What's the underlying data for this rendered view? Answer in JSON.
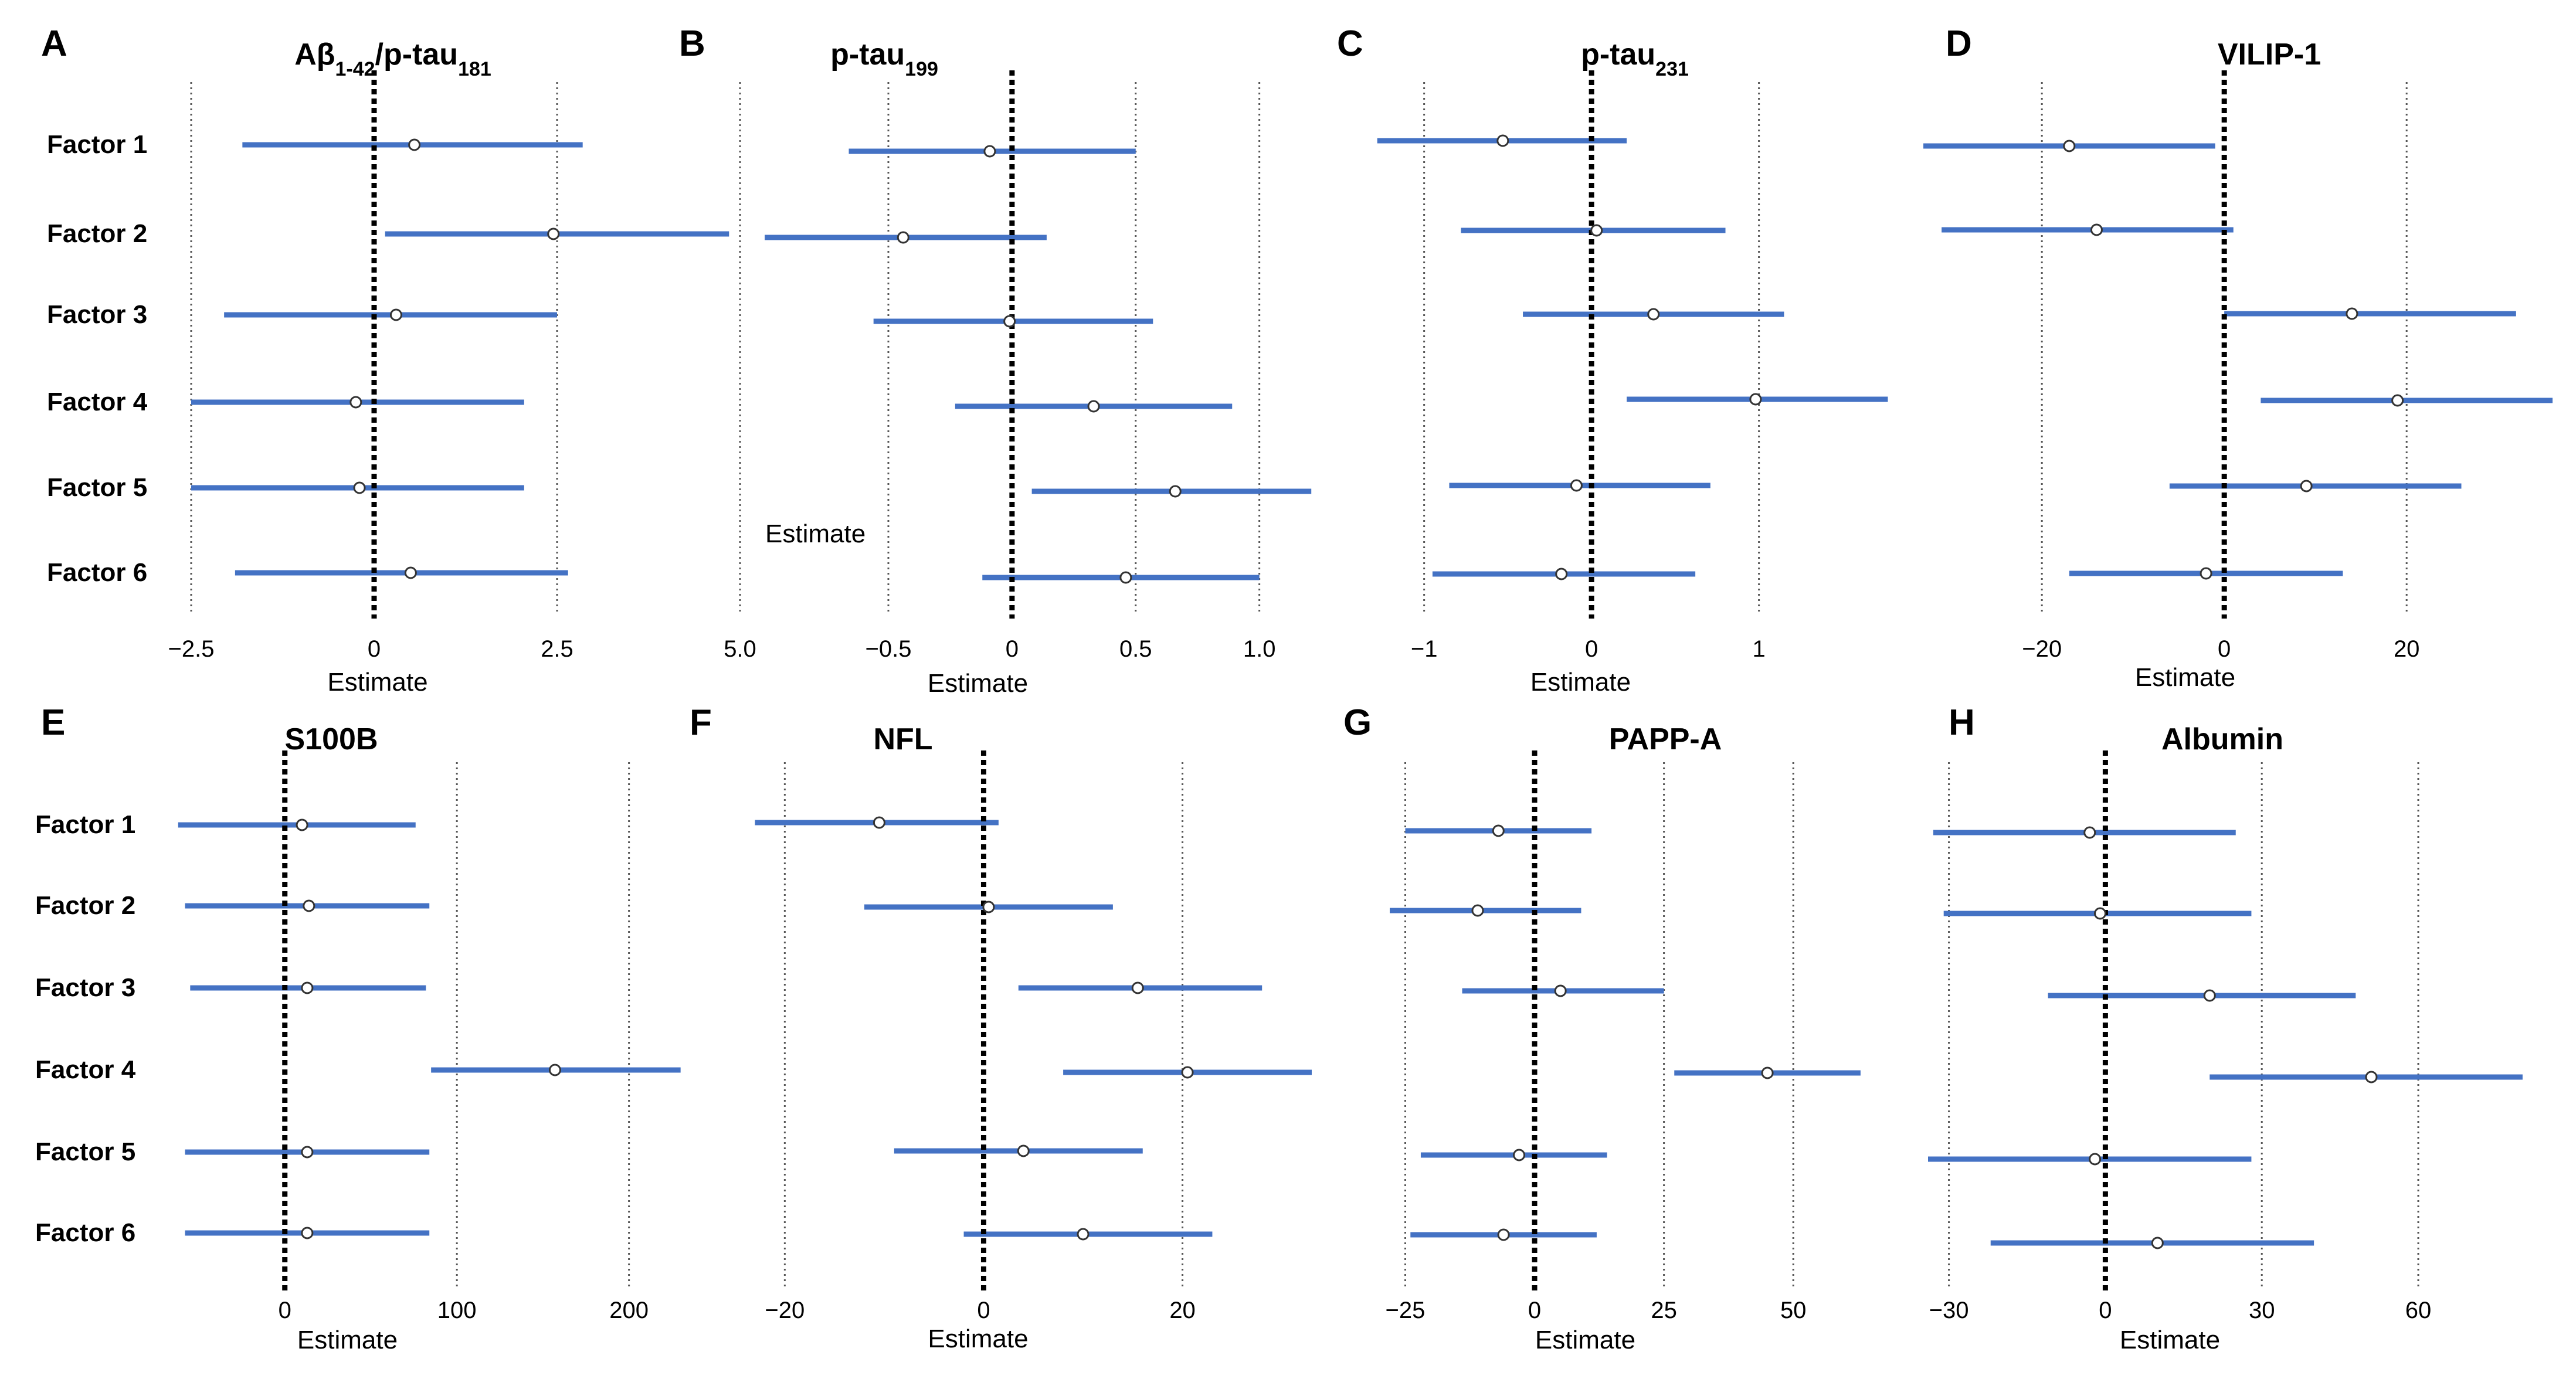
{
  "row_labels": [
    "Factor 1",
    "Factor 2",
    "Factor 3",
    "Factor 4",
    "Factor 5",
    "Factor 6"
  ],
  "stray_label": "Estimate",
  "chart_data": [
    {
      "type": "forest",
      "panel": "A",
      "title": "Aβ1-42/p-tau181",
      "title_main": "Aβ",
      "title_sub1": "1-42",
      "title_mid": "/p-tau",
      "title_sub2": "181",
      "xlabel": "Estimate",
      "xlim": [
        -2.5,
        5.0
      ],
      "ticks": [
        -2.5,
        0,
        2.5,
        5.0
      ],
      "tick_labels": [
        "−2.5",
        "0",
        "2.5",
        "5.0"
      ],
      "categories": [
        "Factor 1",
        "Factor 2",
        "Factor 3",
        "Factor 4",
        "Factor 5",
        "Factor 6"
      ],
      "estimate": [
        0.55,
        2.45,
        0.3,
        -0.25,
        -0.2,
        0.5
      ],
      "lower": [
        -1.8,
        0.15,
        -2.05,
        -2.5,
        -2.5,
        -1.9
      ],
      "upper": [
        2.85,
        4.85,
        2.5,
        2.05,
        2.05,
        2.65
      ]
    },
    {
      "type": "forest",
      "panel": "B",
      "title": "p-tau199",
      "title_main": "p-tau",
      "title_sub1": "199",
      "xlabel": "Estimate",
      "xlim": [
        -1.05,
        1.2
      ],
      "ticks": [
        -0.5,
        0,
        0.5,
        1.0
      ],
      "tick_labels": [
        "−0.5",
        "0",
        "0.5",
        "1.0"
      ],
      "categories": [
        "Factor 1",
        "Factor 2",
        "Factor 3",
        "Factor 4",
        "Factor 5",
        "Factor 6"
      ],
      "estimate": [
        -0.09,
        -0.44,
        -0.01,
        0.33,
        0.66,
        0.46
      ],
      "lower": [
        -0.66,
        -1.0,
        -0.56,
        -0.23,
        0.08,
        -0.12
      ],
      "upper": [
        0.5,
        0.14,
        0.57,
        0.89,
        1.21,
        1.0
      ]
    },
    {
      "type": "forest",
      "panel": "C",
      "title": "p-tau231",
      "title_main": "p-tau",
      "title_sub1": "231",
      "xlabel": "Estimate",
      "xlim": [
        -1.3,
        1.8
      ],
      "ticks": [
        -1,
        0,
        1
      ],
      "tick_labels": [
        "−1",
        "0",
        "1"
      ],
      "categories": [
        "Factor 1",
        "Factor 2",
        "Factor 3",
        "Factor 4",
        "Factor 5",
        "Factor 6"
      ],
      "estimate": [
        -0.53,
        0.03,
        0.37,
        0.98,
        -0.09,
        -0.18
      ],
      "lower": [
        -1.28,
        -0.78,
        -0.41,
        0.21,
        -0.85,
        -0.95
      ],
      "upper": [
        0.21,
        0.8,
        1.15,
        1.77,
        0.71,
        0.62
      ]
    },
    {
      "type": "forest",
      "panel": "D",
      "title": "VILIP-1",
      "xlabel": "Estimate",
      "xlim": [
        -33,
        36
      ],
      "ticks": [
        -20,
        0,
        20
      ],
      "tick_labels": [
        "−20",
        "0",
        "20"
      ],
      "categories": [
        "Factor 1",
        "Factor 2",
        "Factor 3",
        "Factor 4",
        "Factor 5",
        "Factor 6"
      ],
      "estimate": [
        -17,
        -14,
        14,
        19,
        9,
        -2
      ],
      "lower": [
        -33,
        -31,
        0,
        4,
        -6,
        -17
      ],
      "upper": [
        -1,
        1,
        32,
        36,
        26,
        13
      ]
    },
    {
      "type": "forest",
      "panel": "E",
      "title": "S100B",
      "xlabel": "Estimate",
      "xlim": [
        -65,
        240
      ],
      "ticks": [
        0,
        100,
        200
      ],
      "tick_labels": [
        "0",
        "100",
        "200"
      ],
      "categories": [
        "Factor 1",
        "Factor 2",
        "Factor 3",
        "Factor 4",
        "Factor 5",
        "Factor 6"
      ],
      "estimate": [
        10,
        14,
        13,
        157,
        13,
        13
      ],
      "lower": [
        -62,
        -58,
        -55,
        85,
        -58,
        -58
      ],
      "upper": [
        76,
        84,
        82,
        230,
        84,
        84
      ]
    },
    {
      "type": "forest",
      "panel": "F",
      "title": "NFL",
      "xlabel": "Estimate",
      "xlim": [
        -23.5,
        33
      ],
      "ticks": [
        -20,
        0,
        20
      ],
      "tick_labels": [
        "−20",
        "0",
        "20"
      ],
      "categories": [
        "Factor 1",
        "Factor 2",
        "Factor 3",
        "Factor 4",
        "Factor 5",
        "Factor 6"
      ],
      "estimate": [
        -10.5,
        0.5,
        15.5,
        20.5,
        4,
        10
      ],
      "lower": [
        -23,
        -12,
        3.5,
        8,
        -9,
        -2
      ],
      "upper": [
        1.5,
        13,
        28,
        33,
        16,
        23
      ]
    },
    {
      "type": "forest",
      "panel": "G",
      "title": "PAPP-A",
      "xlabel": "Estimate",
      "xlim": [
        -28,
        68
      ],
      "ticks": [
        -25,
        0,
        25,
        50
      ],
      "tick_labels": [
        "−25",
        "0",
        "25",
        "50"
      ],
      "categories": [
        "Factor 1",
        "Factor 2",
        "Factor 3",
        "Factor 4",
        "Factor 5",
        "Factor 6"
      ],
      "estimate": [
        -7,
        -11,
        5,
        45,
        -3,
        -6
      ],
      "lower": [
        -25,
        -28,
        -14,
        27,
        -22,
        -24
      ],
      "upper": [
        11,
        9,
        25,
        63,
        14,
        12
      ]
    },
    {
      "type": "forest",
      "panel": "H",
      "title": "Albumin",
      "xlabel": "Estimate",
      "xlim": [
        -34,
        79
      ],
      "ticks": [
        -30,
        0,
        30,
        60
      ],
      "tick_labels": [
        "−30",
        "0",
        "30",
        "60"
      ],
      "categories": [
        "Factor 1",
        "Factor 2",
        "Factor 3",
        "Factor 4",
        "Factor 5",
        "Factor 6"
      ],
      "estimate": [
        -3,
        -1,
        20,
        51,
        -2,
        10
      ],
      "lower": [
        -33,
        -31,
        -11,
        20,
        -34,
        -22
      ],
      "upper": [
        25,
        28,
        48,
        80,
        28,
        40
      ]
    }
  ],
  "colors": {
    "ci": "#4472c4",
    "point_fill": "#ffffff",
    "zero_line": "#000000",
    "grid": "#555555"
  }
}
